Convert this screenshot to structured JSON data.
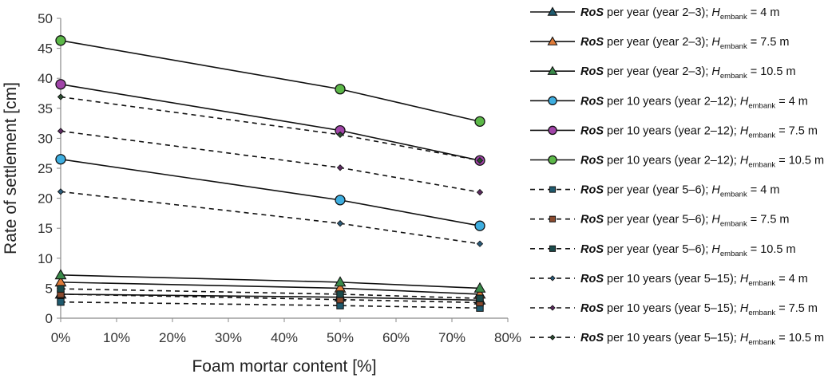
{
  "chart_data": {
    "type": "line",
    "xlabel": "Foam mortar content [%]",
    "ylabel": "Rate of settlement [cm]",
    "x": [
      0,
      50,
      75
    ],
    "xlim": [
      0,
      80
    ],
    "ylim": [
      0,
      50
    ],
    "xticks": [
      "0%",
      "10%",
      "20%",
      "30%",
      "40%",
      "50%",
      "60%",
      "70%",
      "80%"
    ],
    "yticks": [
      "0",
      "5",
      "10",
      "15",
      "20",
      "25",
      "30",
      "35",
      "40",
      "45",
      "50"
    ],
    "grid": false,
    "legend_position": "right",
    "series": [
      {
        "label_pre": "RoS",
        "label_mid": " per year (year 2–3); ",
        "label_h": "H",
        "label_sub": "embank",
        "label_post": " = 4 m",
        "values": [
          4.0,
          3.5,
          3.0
        ],
        "dash": false,
        "marker": "triangle",
        "color": "#1f5a6e"
      },
      {
        "label_pre": "RoS",
        "label_mid": " per year (year 2–3); ",
        "label_h": "H",
        "label_sub": "embank",
        "label_post": " = 7.5 m",
        "values": [
          6.0,
          5.0,
          4.0
        ],
        "dash": false,
        "marker": "triangle",
        "color": "#e07b39"
      },
      {
        "label_pre": "RoS",
        "label_mid": " per year (year 2–3); ",
        "label_h": "H",
        "label_sub": "embank",
        "label_post": " = 10.5 m",
        "values": [
          7.2,
          6.0,
          5.0
        ],
        "dash": false,
        "marker": "triangle",
        "color": "#3a8a4a"
      },
      {
        "label_pre": "RoS",
        "label_mid": " per 10 years (year 2–12); ",
        "label_h": "H",
        "label_sub": "embank",
        "label_post": " = 4 m",
        "values": [
          26.5,
          19.7,
          15.4
        ],
        "dash": false,
        "marker": "circle",
        "color": "#3eaee0"
      },
      {
        "label_pre": "RoS",
        "label_mid": " per 10 years (year 2–12); ",
        "label_h": "H",
        "label_sub": "embank",
        "label_post": " = 7.5 m",
        "values": [
          39.0,
          31.3,
          26.3
        ],
        "dash": false,
        "marker": "circle",
        "color": "#a044a8"
      },
      {
        "label_pre": "RoS",
        "label_mid": " per 10 years (year 2–12); ",
        "label_h": "H",
        "label_sub": "embank",
        "label_post": " = 10.5 m",
        "values": [
          46.3,
          38.2,
          32.8
        ],
        "dash": false,
        "marker": "circle",
        "color": "#5cb848"
      },
      {
        "label_pre": "RoS",
        "label_mid": " per year (year 5–6); ",
        "label_h": "H",
        "label_sub": "embank",
        "label_post": " = 4 m",
        "values": [
          2.7,
          2.1,
          1.7
        ],
        "dash": true,
        "marker": "square",
        "color": "#1f5a6e"
      },
      {
        "label_pre": "RoS",
        "label_mid": " per year (year 5–6); ",
        "label_h": "H",
        "label_sub": "embank",
        "label_post": " = 7.5 m",
        "values": [
          4.0,
          3.1,
          2.6
        ],
        "dash": true,
        "marker": "square",
        "color": "#8a4a2e"
      },
      {
        "label_pre": "RoS",
        "label_mid": " per year (year 5–6); ",
        "label_h": "H",
        "label_sub": "embank",
        "label_post": " = 10.5 m",
        "values": [
          4.9,
          4.0,
          3.3
        ],
        "dash": true,
        "marker": "square",
        "color": "#1a4a4a"
      },
      {
        "label_pre": "RoS",
        "label_mid": " per 10 years (year 5–15); ",
        "label_h": "H",
        "label_sub": "embank",
        "label_post": " = 4 m",
        "values": [
          21.1,
          15.8,
          12.4
        ],
        "dash": true,
        "marker": "diamond",
        "color": "#2a5a78"
      },
      {
        "label_pre": "RoS",
        "label_mid": " per 10 years (year 5–15); ",
        "label_h": "H",
        "label_sub": "embank",
        "label_post": " = 7.5 m",
        "values": [
          31.2,
          25.1,
          21.0
        ],
        "dash": true,
        "marker": "diamond",
        "color": "#5a2a5e"
      },
      {
        "label_pre": "RoS",
        "label_mid": " per 10 years (year 5–15); ",
        "label_h": "H",
        "label_sub": "embank",
        "label_post": " = 10.5 m",
        "values": [
          36.9,
          30.6,
          26.3
        ],
        "dash": true,
        "marker": "diamond",
        "color": "#2a4a30"
      }
    ]
  }
}
